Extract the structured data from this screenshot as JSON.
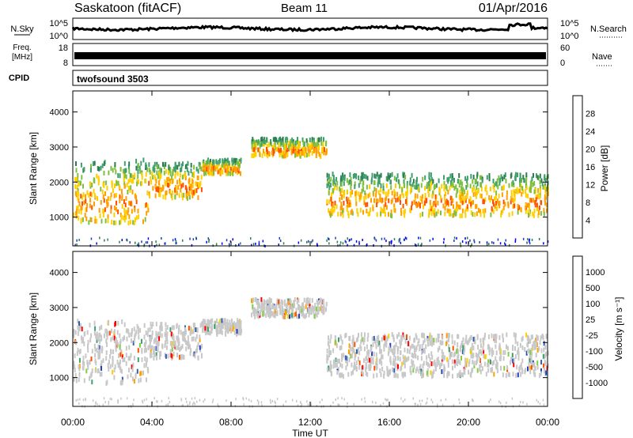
{
  "header": {
    "title": "Saskatoon (fitACF)",
    "beam": "Beam 11",
    "date": "01/Apr/2016"
  },
  "noise_panel": {
    "left_label": "N.Sky",
    "right_label": "N.Search",
    "left_ticks": [
      "10^5",
      "10^0"
    ],
    "right_ticks": [
      "10^5",
      "10^0"
    ]
  },
  "freq_panel": {
    "left_label_1": "Freq.",
    "left_label_2": "[MHz]",
    "right_label": "Nave",
    "left_ticks": [
      "18",
      "8"
    ],
    "right_ticks": [
      "60",
      "0"
    ]
  },
  "cpid_panel": {
    "label": "CPID",
    "program": "twofsound 3503"
  },
  "x_axis": {
    "label": "Time UT",
    "ticks": [
      "00:00",
      "04:00",
      "08:00",
      "12:00",
      "16:00",
      "20:00",
      "00:00"
    ]
  },
  "colors": {
    "power_scale": [
      "#0000ff",
      "#1f3fbf",
      "#2e7d4f",
      "#3f9f6f",
      "#7fbf3f",
      "#ffd000",
      "#ff9f00",
      "#ff5000",
      "#ff0000"
    ],
    "velocity_scale": [
      "#ff0000",
      "#ff5000",
      "#ff9f00",
      "#ffd000",
      "#c8c8c8",
      "#7fcf3f",
      "#3f9f6f",
      "#2e5faf",
      "#1f3fbf"
    ]
  },
  "chart_data": [
    {
      "type": "heatmap",
      "name": "power",
      "xlabel": "Time UT",
      "ylabel": "Slant Range [km]",
      "x_range_hours": [
        0,
        24
      ],
      "ylim": [
        180,
        4600
      ],
      "yticks": [
        "1000",
        "2000",
        "3000",
        "4000"
      ],
      "colorbar": {
        "title": "Power [dB]",
        "ticks": [
          "4",
          "8",
          "12",
          "16",
          "20",
          "24",
          "28"
        ],
        "range": [
          0,
          32
        ]
      }
    },
    {
      "type": "heatmap",
      "name": "velocity",
      "xlabel": "Time UT",
      "ylabel": "Slant Range [km]",
      "x_range_hours": [
        0,
        24
      ],
      "ylim": [
        180,
        4600
      ],
      "yticks": [
        "1000",
        "2000",
        "3000",
        "4000"
      ],
      "colorbar": {
        "title": "Velocity [m s⁻¹]",
        "ticks": [
          "1000",
          "500",
          "100",
          "25",
          "-25",
          "-100",
          "-500",
          "-1000"
        ]
      }
    }
  ]
}
